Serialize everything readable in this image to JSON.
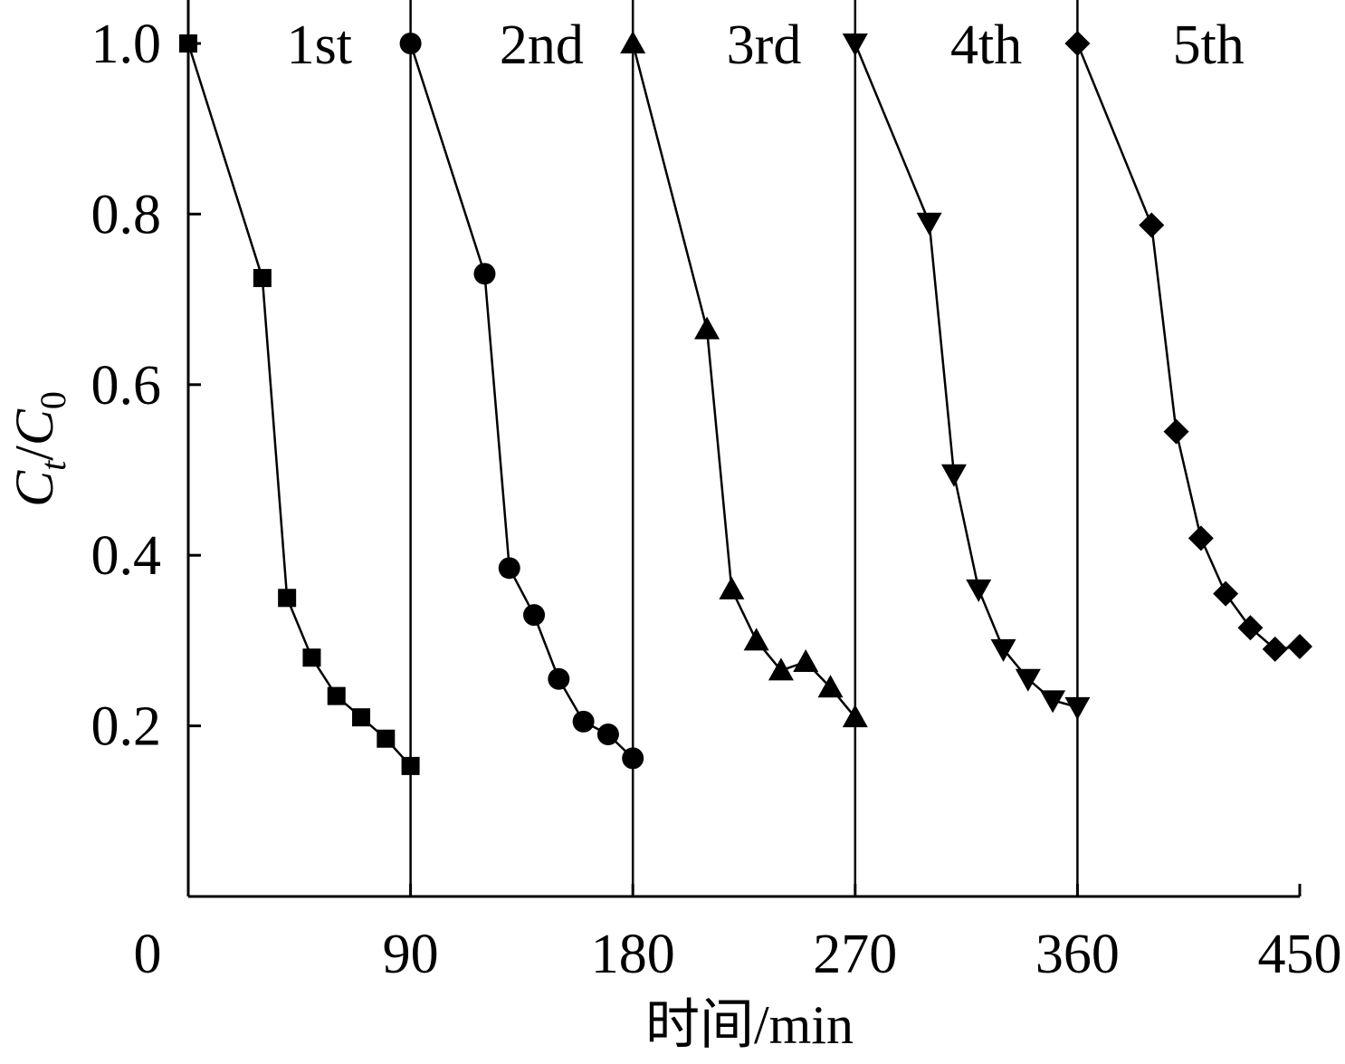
{
  "chart_data": {
    "type": "line",
    "xlabel": "时间/min",
    "ylabel_main": "C",
    "ylabel_main_sub": "t",
    "ylabel_sep": "/",
    "ylabel_den": "C",
    "ylabel_den_sub": "0",
    "xlim": [
      0,
      450
    ],
    "ylim": [
      0,
      1.0
    ],
    "x_ticks": [
      {
        "value": 0,
        "label": "0"
      },
      {
        "value": 90,
        "label": "90"
      },
      {
        "value": 180,
        "label": "180"
      },
      {
        "value": 270,
        "label": "270"
      },
      {
        "value": 360,
        "label": "360"
      },
      {
        "value": 450,
        "label": "450"
      }
    ],
    "y_ticks": [
      {
        "value": 0.2,
        "label": "0.2"
      },
      {
        "value": 0.4,
        "label": "0.4"
      },
      {
        "value": 0.6,
        "label": "0.6"
      },
      {
        "value": 0.8,
        "label": "0.8"
      },
      {
        "value": 1.0,
        "label": "1.0"
      }
    ],
    "dividers": [
      90,
      180,
      270,
      360
    ],
    "grid": false,
    "series": [
      {
        "label": "1st",
        "marker": "square",
        "x": [
          0,
          30,
          40,
          50,
          60,
          70,
          80,
          90
        ],
        "y": [
          1.0,
          0.725,
          0.35,
          0.28,
          0.235,
          0.21,
          0.185,
          0.153
        ]
      },
      {
        "label": "2nd",
        "marker": "circle",
        "x": [
          90,
          120,
          130,
          140,
          150,
          160,
          170,
          180
        ],
        "y": [
          1.0,
          0.73,
          0.385,
          0.33,
          0.255,
          0.205,
          0.19,
          0.162
        ]
      },
      {
        "label": "3rd",
        "marker": "triangle-up",
        "x": [
          180,
          210,
          220,
          230,
          240,
          250,
          260,
          270
        ],
        "y": [
          1.0,
          0.665,
          0.36,
          0.3,
          0.265,
          0.275,
          0.245,
          0.21
        ]
      },
      {
        "label": "4th",
        "marker": "triangle-down",
        "x": [
          270,
          300,
          310,
          320,
          330,
          340,
          350,
          360
        ],
        "y": [
          1.0,
          0.79,
          0.495,
          0.36,
          0.29,
          0.255,
          0.23,
          0.222
        ]
      },
      {
        "label": "5th",
        "marker": "diamond",
        "x": [
          360,
          390,
          400,
          410,
          420,
          430,
          440,
          450
        ],
        "y": [
          1.0,
          0.787,
          0.545,
          0.42,
          0.355,
          0.315,
          0.29,
          0.293
        ]
      }
    ]
  }
}
